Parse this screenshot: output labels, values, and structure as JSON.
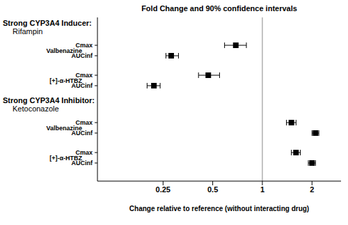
{
  "chart_data": {
    "type": "forest",
    "title": "Fold Change and 90% confidence intervals",
    "xlabel": "Change relative to reference (without interacting drug)",
    "log": "x",
    "xlim": [
      0.1,
      3
    ],
    "xticks": [
      0.25,
      0.5,
      1,
      2
    ],
    "reference_line": 1,
    "color": "#000000",
    "marker": "square",
    "groups": [
      {
        "header": "Strong CYP3A4 Inducer:",
        "drug": "Rifampin",
        "analytes": [
          {
            "name": "Valbenazine",
            "rows": [
              {
                "label": "Cmax",
                "value": 0.69,
                "ci": [
                  0.59,
                  0.8
                ]
              },
              {
                "label": "AUCinf",
                "value": 0.28,
                "ci": [
                  0.26,
                  0.31
                ]
              }
            ]
          },
          {
            "name": "[+]-α-HTBZ",
            "rows": [
              {
                "label": "Cmax",
                "value": 0.47,
                "ci": [
                  0.41,
                  0.55
                ]
              },
              {
                "label": "AUCinf",
                "value": 0.22,
                "ci": [
                  0.2,
                  0.24
                ]
              }
            ]
          }
        ]
      },
      {
        "header": "Strong CYP3A4 Inhibitor:",
        "drug": "Ketoconazole",
        "analytes": [
          {
            "name": "Valbenazine",
            "rows": [
              {
                "label": "Cmax",
                "value": 1.5,
                "ci": [
                  1.4,
                  1.6
                ]
              },
              {
                "label": "AUCinf",
                "value": 2.1,
                "ci": [
                  2.0,
                  2.2
                ]
              }
            ]
          },
          {
            "name": "[+]-α-HTBZ",
            "rows": [
              {
                "label": "Cmax",
                "value": 1.6,
                "ci": [
                  1.5,
                  1.7
                ]
              },
              {
                "label": "AUCinf",
                "value": 2.0,
                "ci": [
                  1.9,
                  2.1
                ]
              }
            ]
          }
        ]
      }
    ]
  }
}
